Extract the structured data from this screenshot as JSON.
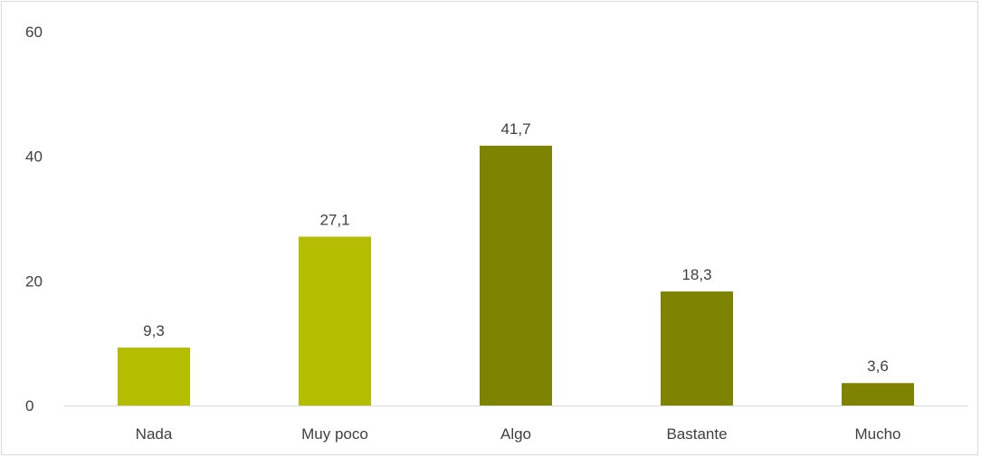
{
  "chart_data": {
    "type": "bar",
    "title": "",
    "xlabel": "",
    "ylabel": "",
    "categories": [
      "Nada",
      "Muy poco",
      "Algo",
      "Bastante",
      "Mucho"
    ],
    "values": [
      9.3,
      27.1,
      41.7,
      18.3,
      3.6
    ],
    "data_labels": [
      "9,3",
      "27,1",
      "41,7",
      "18,3",
      "3,6"
    ],
    "bar_colors": [
      "#b5bd00",
      "#b5bd00",
      "#7f8400",
      "#7f8400",
      "#7f8400"
    ],
    "ylim": [
      0,
      60
    ],
    "yticks": [
      0,
      20,
      40,
      60
    ],
    "ytick_labels": [
      "0",
      "20",
      "40",
      "60"
    ],
    "grid": false,
    "legend": "none"
  }
}
